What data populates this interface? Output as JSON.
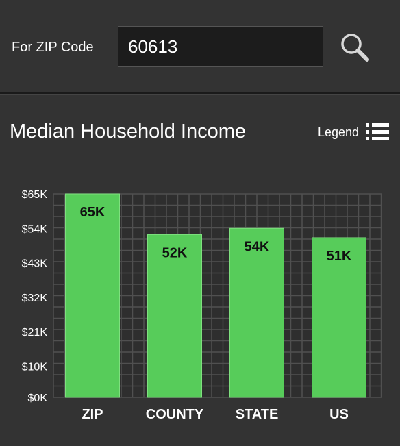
{
  "search": {
    "label": "For ZIP Code",
    "value": "60613",
    "icon": "search-icon"
  },
  "panel": {
    "title": "Median Household Income",
    "legend_label": "Legend",
    "legend_icon": "list-icon"
  },
  "colors": {
    "background": "#333333",
    "bar": "#57cc5a",
    "grid": "#505050",
    "text": "#ffffff"
  },
  "chart_data": {
    "type": "bar",
    "categories": [
      "ZIP",
      "COUNTY",
      "STATE",
      "US"
    ],
    "values": [
      65,
      52,
      54,
      51
    ],
    "data_labels": [
      "65K",
      "52K",
      "54K",
      "51K"
    ],
    "yticks": [
      0,
      10,
      21,
      32,
      43,
      54,
      65
    ],
    "ytick_labels": [
      "$0K",
      "$10K",
      "$21K",
      "$32K",
      "$43K",
      "$54K",
      "$65K"
    ],
    "ylim": [
      0,
      65
    ],
    "grid": true,
    "title": "Median Household Income"
  }
}
